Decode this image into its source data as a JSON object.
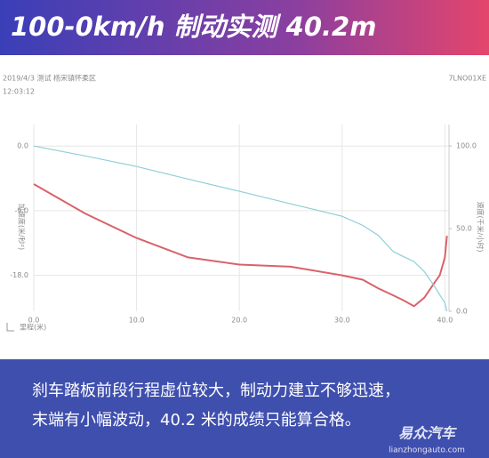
{
  "header": {
    "title": "100-0km/h 制动实测 40.2m",
    "date": "2019/4/3 测试 杨宋镇怀柔区",
    "time": "12:03:12",
    "id": "7LNO01XE"
  },
  "chart_data": {
    "type": "line",
    "x_label": "里程(米)",
    "y_label": "加速度(米/秒²)",
    "y2_label": "速度(千米/小时)",
    "x": [
      0,
      5,
      10,
      15,
      20,
      25,
      30,
      32,
      33.5,
      35,
      36,
      37,
      38,
      39,
      39.5,
      40,
      40.2
    ],
    "series": [
      {
        "name": "加速度",
        "color": "#d9626b",
        "values": [
          -5.3,
          -9.4,
          -12.8,
          -15.5,
          -16.5,
          -16.8,
          -18,
          -18.6,
          -19.8,
          -20.8,
          -21.5,
          -22.3,
          -21.1,
          -19,
          -18,
          -15.5,
          -12.5
        ]
      },
      {
        "name": "速度",
        "color": "#8fcfd8",
        "axis": "y2",
        "values": [
          100,
          94,
          87.6,
          80,
          72.6,
          65,
          57.5,
          52,
          46,
          36,
          33,
          30,
          24,
          15,
          10,
          5,
          0
        ]
      }
    ],
    "xlim": [
      0,
      40.4
    ],
    "xticks": [
      {
        "value": 0,
        "label": "0.0"
      },
      {
        "value": 10,
        "label": "10.0"
      },
      {
        "value": 20,
        "label": "20.0"
      },
      {
        "value": 30,
        "label": "30.0"
      },
      {
        "value": 40,
        "label": "40.0"
      }
    ],
    "ylim": [
      -23,
      3
    ],
    "yticks": [
      {
        "value": 0,
        "label": "0.0"
      },
      {
        "value": -9,
        "label": "-9.0"
      },
      {
        "value": -18,
        "label": "-18.0"
      }
    ],
    "y2lim": [
      0,
      113
    ],
    "y2ticks": [
      {
        "value": 100,
        "label": "100.0"
      },
      {
        "value": 50,
        "label": "50.0"
      },
      {
        "value": 0,
        "label": "0.0"
      }
    ],
    "grid": true
  },
  "footer": {
    "lines": [
      "刹车踏板前段行程虚位较大，制动力建立不够迅速，",
      "末端有小幅波动，40.2 米的成绩只能算合格。"
    ],
    "watermark": "易众汽车",
    "watermark_url": "lianzhongauto.com"
  }
}
